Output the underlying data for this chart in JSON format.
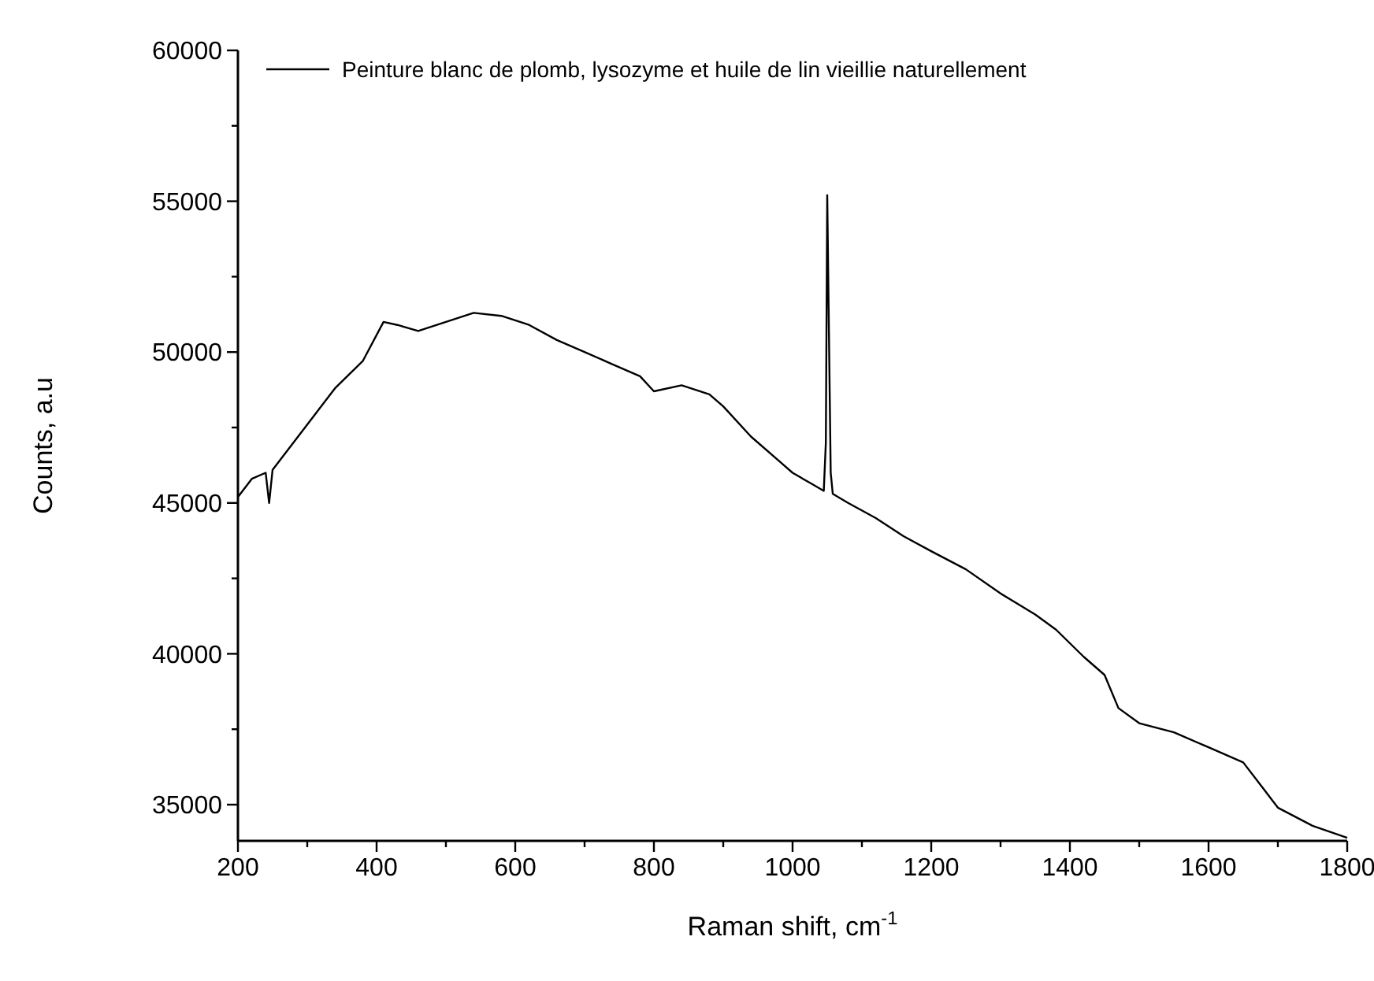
{
  "chart_data": {
    "type": "line",
    "xlabel": "Raman shift, cm$^{-1}$",
    "ylabel": "Counts, a.u",
    "legend": "top left",
    "grid": false,
    "xlim": [
      200,
      1800
    ],
    "xticks": [
      200,
      {
        "value": 300,
        "label": null
      },
      400,
      {
        "value": 500,
        "label": null
      },
      600,
      {
        "value": 700,
        "label": null
      },
      800,
      {
        "value": 900,
        "label": null
      },
      1000,
      {
        "value": 1100,
        "label": null
      },
      1200,
      {
        "value": 1300,
        "label": null
      },
      1400,
      {
        "value": 1500,
        "label": null
      },
      1600,
      {
        "value": 1700,
        "label": null
      },
      1800
    ],
    "ylim": [
      33800,
      60000
    ],
    "yticks": [
      35000,
      {
        "value": 37500,
        "label": null
      },
      40000,
      {
        "value": 42500,
        "label": null
      },
      45000,
      {
        "value": 47500,
        "label": null
      },
      50000,
      {
        "value": 52500,
        "label": null
      },
      55000,
      {
        "value": 57500,
        "label": null
      },
      60000
    ],
    "series": [
      {
        "name": "Peinture blanc de plomb, lysozyme et huile de lin vieillie naturellement",
        "color": "#000000",
        "x": [
          200,
          220,
          240,
          245,
          250,
          260,
          300,
          340,
          380,
          410,
          430,
          460,
          500,
          540,
          580,
          620,
          660,
          700,
          740,
          780,
          800,
          840,
          880,
          900,
          940,
          980,
          1000,
          1030,
          1045,
          1048,
          1050,
          1052,
          1055,
          1058,
          1080,
          1120,
          1160,
          1200,
          1250,
          1300,
          1350,
          1380,
          1420,
          1450,
          1470,
          1500,
          1550,
          1600,
          1650,
          1680,
          1700,
          1750,
          1800
        ],
        "values": [
          45200,
          45800,
          46000,
          45000,
          46100,
          46400,
          47600,
          48800,
          49700,
          51000,
          50900,
          50700,
          51000,
          51300,
          51200,
          50900,
          50400,
          50000,
          49600,
          49200,
          48700,
          48900,
          48600,
          48200,
          47200,
          46400,
          46000,
          45600,
          45400,
          47000,
          55200,
          51500,
          46000,
          45300,
          45000,
          44500,
          43900,
          43400,
          42800,
          42000,
          41300,
          40800,
          39900,
          39300,
          38200,
          37700,
          37400,
          36900,
          36400,
          35500,
          34900,
          34300,
          33900
        ]
      }
    ]
  }
}
